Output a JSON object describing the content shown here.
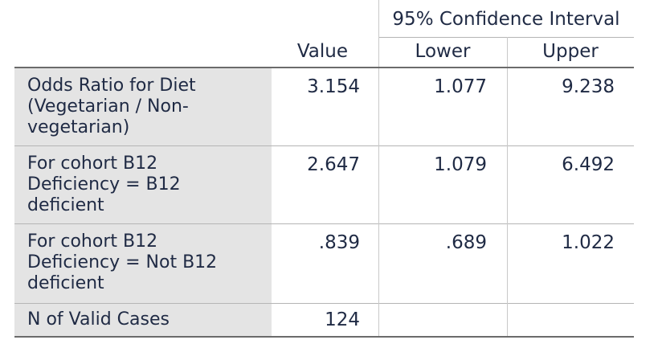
{
  "table": {
    "group_header": "95% Confidence Interval",
    "columns": {
      "value": "Value",
      "lower": "Lower",
      "upper": "Upper"
    },
    "rows": [
      {
        "label_lines": [
          "Odds Ratio for Diet",
          "(Vegetarian / Non-",
          "vegetarian)"
        ],
        "value": "3.154",
        "lower": "1.077",
        "upper": "9.238"
      },
      {
        "label_lines": [
          "For cohort B12",
          "Deficiency = B12",
          "deficient"
        ],
        "value": "2.647",
        "lower": "1.079",
        "upper": "6.492"
      },
      {
        "label_lines": [
          "For cohort B12",
          "Deficiency = Not B12",
          "deficient"
        ],
        "value": ".839",
        "lower": ".689",
        "upper": "1.022"
      },
      {
        "label_lines": [
          "N of Valid Cases"
        ],
        "value": "124",
        "lower": "",
        "upper": ""
      }
    ]
  }
}
